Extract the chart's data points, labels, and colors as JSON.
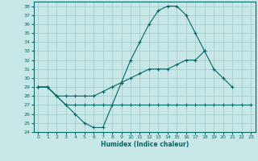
{
  "title": "",
  "xlabel": "Humidex (Indice chaleur)",
  "bg_color": "#c8e8e8",
  "line_color": "#006666",
  "grid_color": "#a0c8c8",
  "xlim": [
    -0.5,
    23.5
  ],
  "ylim": [
    24,
    38.5
  ],
  "yticks": [
    24,
    25,
    26,
    27,
    28,
    29,
    30,
    31,
    32,
    33,
    34,
    35,
    36,
    37,
    38
  ],
  "xticks": [
    0,
    1,
    2,
    3,
    4,
    5,
    6,
    7,
    8,
    9,
    10,
    11,
    12,
    13,
    14,
    15,
    16,
    17,
    18,
    19,
    20,
    21,
    22,
    23
  ],
  "series1": [
    29,
    29,
    28,
    27,
    26,
    25,
    24.5,
    24.5,
    27,
    29.5,
    32,
    34,
    36,
    37.5,
    38,
    38,
    37,
    35,
    33,
    null,
    null,
    null,
    null,
    null
  ],
  "series2": [
    29,
    29,
    28,
    28,
    28,
    28,
    28,
    28.5,
    29,
    29.5,
    30,
    30.5,
    31,
    31,
    31,
    31.5,
    32,
    32,
    33,
    31,
    30,
    29,
    null,
    null
  ],
  "series3": [
    29,
    29,
    28,
    27,
    27,
    27,
    27,
    27,
    27,
    27,
    27,
    27,
    27,
    27,
    27,
    27,
    27,
    27,
    27,
    27,
    27,
    27,
    27,
    27
  ]
}
